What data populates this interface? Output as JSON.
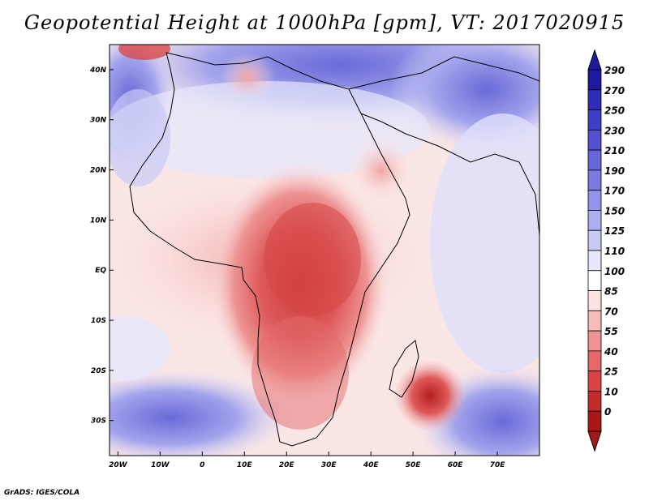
{
  "title": "Geopotential Height at 1000hPa [gpm], VT: 2017020915",
  "map": {
    "lon_labels": [
      "20W",
      "10W",
      "0",
      "10E",
      "20E",
      "30E",
      "40E",
      "50E",
      "60E",
      "70E"
    ],
    "lat_labels": [
      "40N",
      "30N",
      "20N",
      "10N",
      "EQ",
      "10S",
      "20S",
      "30S"
    ],
    "lon_range": [
      -22,
      80
    ],
    "lat_range": [
      -37,
      45
    ]
  },
  "colorbar": {
    "levels": [
      "290",
      "270",
      "250",
      "230",
      "210",
      "190",
      "170",
      "150",
      "125",
      "110",
      "100",
      "85",
      "70",
      "55",
      "40",
      "25",
      "10",
      "0"
    ],
    "colors": [
      "#1e1aa0",
      "#2e2cb8",
      "#3f3ec8",
      "#5351d2",
      "#6766da",
      "#7c7be3",
      "#9493ea",
      "#adaeef",
      "#c9cbf5",
      "#e6e7fb",
      "#ffffff",
      "#fde2e2",
      "#f7bcbc",
      "#ee9393",
      "#e46a6a",
      "#d84444",
      "#c32a2a",
      "#a81818"
    ]
  },
  "footer": "GrADS: IGES/COLA"
}
